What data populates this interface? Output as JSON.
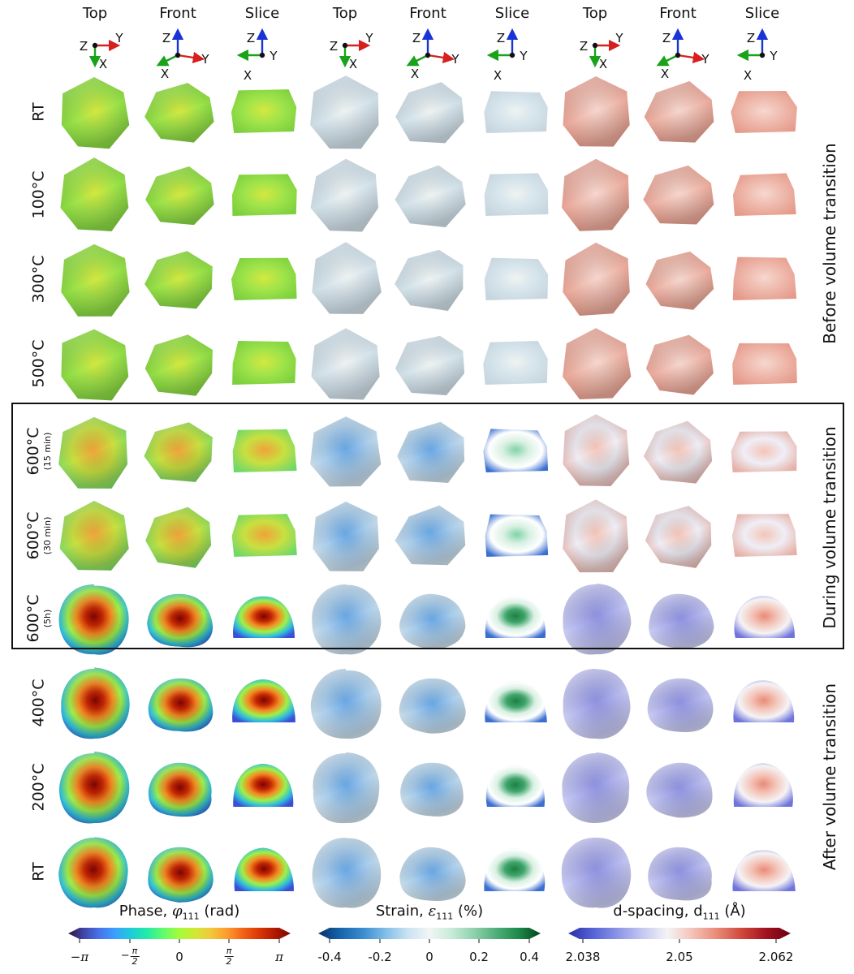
{
  "column_headers": [
    "Top",
    "Front",
    "Slice",
    "Top",
    "Front",
    "Slice",
    "Top",
    "Front",
    "Slice"
  ],
  "axis_labels": {
    "top": [
      "Z",
      "Y",
      "X"
    ],
    "front": [
      "Z",
      "Y",
      "X"
    ],
    "slice": [
      "Z",
      "Y",
      "X"
    ]
  },
  "rows": [
    {
      "label": "RT",
      "sub": ""
    },
    {
      "label": "100°C",
      "sub": ""
    },
    {
      "label": "300°C",
      "sub": ""
    },
    {
      "label": "500°C",
      "sub": ""
    },
    {
      "label": "600°C",
      "sub": "(15 min)"
    },
    {
      "label": "600°C",
      "sub": "(30 min)"
    },
    {
      "label": "600°C",
      "sub": "(5h)"
    },
    {
      "label": "400°C",
      "sub": ""
    },
    {
      "label": "200°C",
      "sub": ""
    },
    {
      "label": "RT",
      "sub": ""
    }
  ],
  "sections": {
    "before": "Before volume transition",
    "during": "During volume transition",
    "after": "After volume transition"
  },
  "colorbars": {
    "phase": {
      "title_prefix": "Phase, ",
      "symbol": "φ",
      "subscript": "111",
      "unit": " (rad)",
      "ticks": {
        "t0": "−π",
        "t1_sign": "−",
        "t1_num": "π",
        "t1_den": "2",
        "t2": "0",
        "t3_num": "π",
        "t3_den": "2",
        "t4": "π"
      },
      "colors": [
        "#30123b",
        "#4145ab",
        "#4675ed",
        "#39a2fc",
        "#1bcfd4",
        "#24eca6",
        "#61fc6c",
        "#a4fc3b",
        "#d1e834",
        "#f3c63a",
        "#fe9b2d",
        "#f36315",
        "#d93806",
        "#b11901",
        "#7a0403"
      ]
    },
    "strain": {
      "title_prefix": "Strain, ",
      "symbol": "ε",
      "subscript": "111",
      "unit": " (%)",
      "ticks": [
        "-0.4",
        "-0.2",
        "0",
        "0.2",
        "0.4"
      ],
      "colors": [
        "#08306b",
        "#1764ab",
        "#3a8bd0",
        "#7fbde8",
        "#c8e2f2",
        "#f2f5f5",
        "#c8ebd8",
        "#8fd1ac",
        "#4fae7a",
        "#1e8a4b",
        "#00441b"
      ]
    },
    "dspacing": {
      "title_prefix": "d-spacing, d",
      "subscript": "111",
      "unit": " (Å)",
      "ticks": [
        "2.038",
        "2.05",
        "2.062"
      ],
      "colors": [
        "#2a2fa8",
        "#5563d6",
        "#8c95e6",
        "#c3c8f2",
        "#f5f3f5",
        "#f4c4b8",
        "#e98b78",
        "#d0493c",
        "#a21220",
        "#67000d"
      ]
    }
  },
  "panel_colors": {
    "phase_before": [
      "#d4e840",
      "#9ee34a",
      "#7ccf3e"
    ],
    "phase_during": [
      "#f0a33a",
      "#c8e040",
      "#6fd86a"
    ],
    "phase_core": [
      "#7a0403",
      "#c32503",
      "#f58a22"
    ],
    "phase_ring": [
      "#3a4fd8",
      "#2fc0da",
      "#9ff048"
    ],
    "strain_before": [
      "#eef3f1",
      "#d6e4ec",
      "#c7d6de"
    ],
    "strain_during": [
      "#6aa8e4",
      "#a9cdec",
      "#d3e0e6"
    ],
    "strain_slice": [
      "#1e7f44",
      "#3fa56a",
      "#d9f0e3"
    ],
    "dsp_before": [
      "#f6d7cf",
      "#eeb8ab",
      "#e59a8a"
    ],
    "dsp_during": [
      "#f4c5b8",
      "#efeef6",
      "#e6b0a6"
    ],
    "dsp_after": [
      "#8f92e0",
      "#b2b5ec",
      "#d3d4f4"
    ]
  }
}
